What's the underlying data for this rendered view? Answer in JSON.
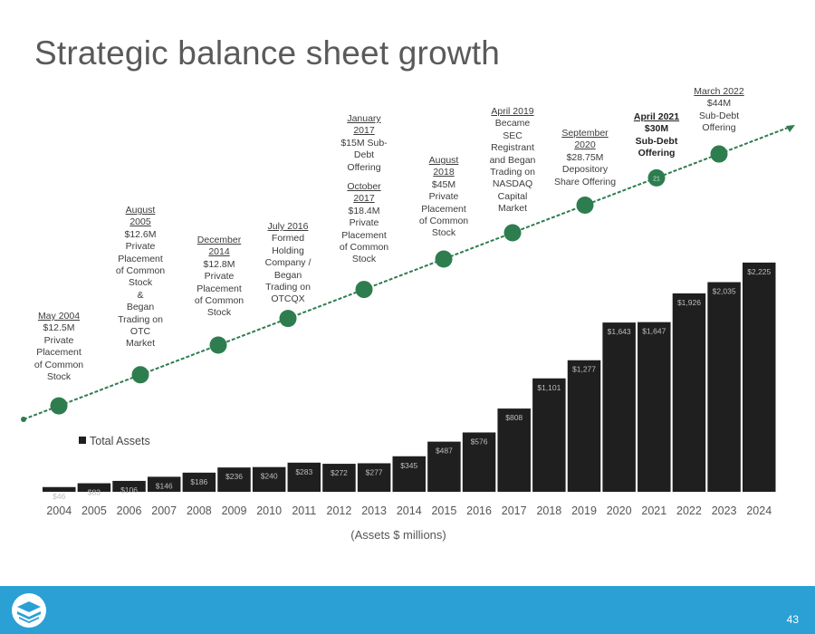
{
  "title": "Strategic balance sheet growth",
  "page_number": "43",
  "colors": {
    "bar": "#1f1f1f",
    "milestone": "#2e7d4f",
    "arrow": "#2e7d4f",
    "footer": "#2aa0d5",
    "bar_label": "#bdbdbd"
  },
  "milestones": [
    {
      "id": "m2004",
      "heading": "May 2004",
      "body": "$12.5M\nPrivate\nPlacement\nof Common\nStock",
      "marker": ""
    },
    {
      "id": "m2005",
      "heading": "August\n2005",
      "body": "$12.6M\nPrivate\nPlacement\nof Common\nStock\n&\nBegan\nTrading on\nOTC\nMarket",
      "marker": ""
    },
    {
      "id": "m2014",
      "heading": "December\n2014",
      "body": "$12.8M\nPrivate\nPlacement\nof Common\nStock",
      "marker": ""
    },
    {
      "id": "m2016",
      "heading": "July 2016",
      "body": "Formed\nHolding\nCompany /\nBegan\nTrading on\nOTCQX",
      "marker": ""
    },
    {
      "id": "m2017",
      "heading": "January\n2017",
      "body": "$15M Sub-\nDebt\nOffering",
      "heading2": "October\n2017",
      "body2": "$18.4M\nPrivate\nPlacement\nof Common\nStock",
      "marker": ""
    },
    {
      "id": "m2018",
      "heading": "August\n2018",
      "body": "$45M\nPrivate\nPlacement\nof Common\nStock",
      "marker": ""
    },
    {
      "id": "m2019",
      "heading": "April 2019",
      "body": "Became\nSEC\nRegistrant\nand Began\nTrading on\nNASDAQ\nCapital\nMarket",
      "marker": ""
    },
    {
      "id": "m2020",
      "heading": "September\n2020",
      "body": "$28.75M\nDepository\nShare Offering",
      "marker": ""
    },
    {
      "id": "m2021",
      "heading": "April 2021",
      "body": "$30M\nSub-Debt\nOffering",
      "marker": "21"
    },
    {
      "id": "m2022",
      "heading": "March 2022",
      "body": "$44M\nSub-Debt\nOffering",
      "marker": ""
    }
  ],
  "chart_data": {
    "type": "bar",
    "categories": [
      "2004",
      "2005",
      "2006",
      "2007",
      "2008",
      "2009",
      "2010",
      "2011",
      "2012",
      "2013",
      "2014",
      "2015",
      "2016",
      "2017",
      "2018",
      "2019",
      "2020",
      "2021",
      "2022",
      "2023",
      "2024"
    ],
    "series": [
      {
        "name": "Total Assets",
        "values": [
          46,
          83,
          106,
          146,
          186,
          236,
          240,
          283,
          272,
          277,
          345,
          487,
          576,
          808,
          1101,
          1277,
          1643,
          1647,
          1926,
          2035,
          2225
        ],
        "labels": [
          "$46",
          "$83",
          "$106",
          "$146",
          "$186",
          "$236",
          "$240",
          "$283",
          "$272",
          "$277",
          "$345",
          "$487",
          "$576",
          "$808",
          "$1,101",
          "$1,277",
          "$1,643",
          "$1,647",
          "$1,926",
          "$2,035",
          "$2,225"
        ]
      }
    ],
    "legend": "Total Assets",
    "xlabel": "(Assets $ millions)",
    "ylabel": "",
    "ylim": [
      0,
      2400
    ],
    "legend_position": "left",
    "grid": false
  }
}
